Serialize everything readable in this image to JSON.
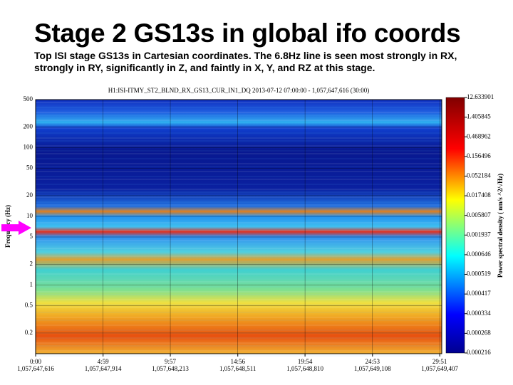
{
  "header": {
    "title": "Stage 2 GS13s in global ifo coords",
    "subtitle": "Top ISI stage GS13s in Cartesian coordinates. The 6.8Hz line is seen most strongly in RX, strongly in RY, significantly in Z, and faintly in X, Y, and RZ at this stage."
  },
  "chart_data": {
    "type": "spectrogram",
    "title": "H1:ISI-ITMY_ST2_BLND_RX_GS13_CUR_IN1_DQ 2013-07-12 07:00:00 - 1,057,647,616 (30:00)",
    "ylabel": "Frequency (Hz)",
    "ylog": true,
    "ylim": [
      0.1,
      500
    ],
    "yticks": [
      500,
      200,
      100,
      50,
      20,
      10,
      5,
      2,
      1,
      0.5,
      0.2
    ],
    "xlim": [
      0,
      1800
    ],
    "xticks": [
      {
        "value": 0,
        "label": "0:00",
        "label2": "1,057,647,616"
      },
      {
        "value": 299,
        "label": "4:59",
        "label2": "1,057,647,914"
      },
      {
        "value": 597,
        "label": "9:57",
        "label2": "1,057,648,213"
      },
      {
        "value": 896,
        "label": "14:56",
        "label2": "1,057,648,511"
      },
      {
        "value": 1194,
        "label": "19:54",
        "label2": "1,057,648,810"
      },
      {
        "value": 1493,
        "label": "24:53",
        "label2": "1,057,649,108"
      },
      {
        "value": 1791,
        "label": "29:51",
        "label2": "1,057,649,407"
      }
    ],
    "grid": true,
    "marker": 6.8,
    "marker_color": "#ff00ff",
    "colorbar_label": "Power spectral density ( nm/s ^2/√Hz)",
    "colorbar_ticks": [
      12.633901,
      1.405845,
      0.468962,
      0.156496,
      0.052184,
      0.017408,
      0.005807,
      0.001937,
      0.000646,
      0.000519,
      0.000417,
      0.000334,
      0.000268,
      0.000216
    ]
  }
}
